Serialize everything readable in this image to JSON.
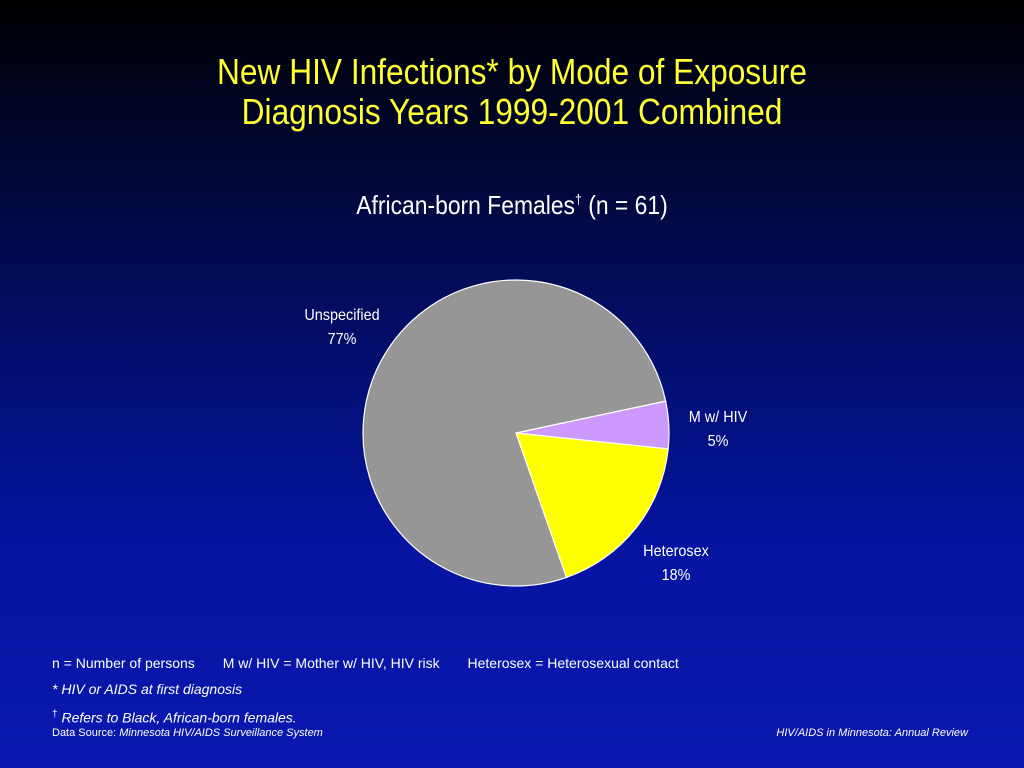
{
  "slide": {
    "title_line1": "New HIV Infections* by Mode of Exposure",
    "title_line2": "Diagnosis Years 1999-2001 Combined"
  },
  "chart_data": {
    "type": "pie",
    "title": "African-born Females† (n = 61)",
    "title_main": "African-born Females",
    "title_mark": "†",
    "title_suffix": " (n = 61)",
    "slices": [
      {
        "name": "M w/ HIV",
        "value": 5,
        "label": "5%",
        "color": "#cc99ff"
      },
      {
        "name": "Heterosex",
        "value": 18,
        "label": "18%",
        "color": "#ffff00"
      },
      {
        "name": "Unspecified",
        "value": 77,
        "label": "77%",
        "color": "#969696"
      }
    ],
    "start": "3 o'clock",
    "direction": "clockwise",
    "slice_border_color": "#ffffff"
  },
  "footnotes": {
    "n_def": "n = Number of persons",
    "mhiv_def": "M w/ HIV = Mother w/ HIV, HIV risk",
    "hetero_def": "Heterosex = Heterosexual contact",
    "star_note": "* HIV or AIDS at first diagnosis",
    "dagger_mark": "†",
    "dagger_note": " Refers to Black, African-born females."
  },
  "footer": {
    "source_prefix": "Data Source: ",
    "source_name": "Minnesota HIV/AIDS Surveillance System",
    "review": "HIV/AIDS in Minnesota: Annual Review"
  }
}
